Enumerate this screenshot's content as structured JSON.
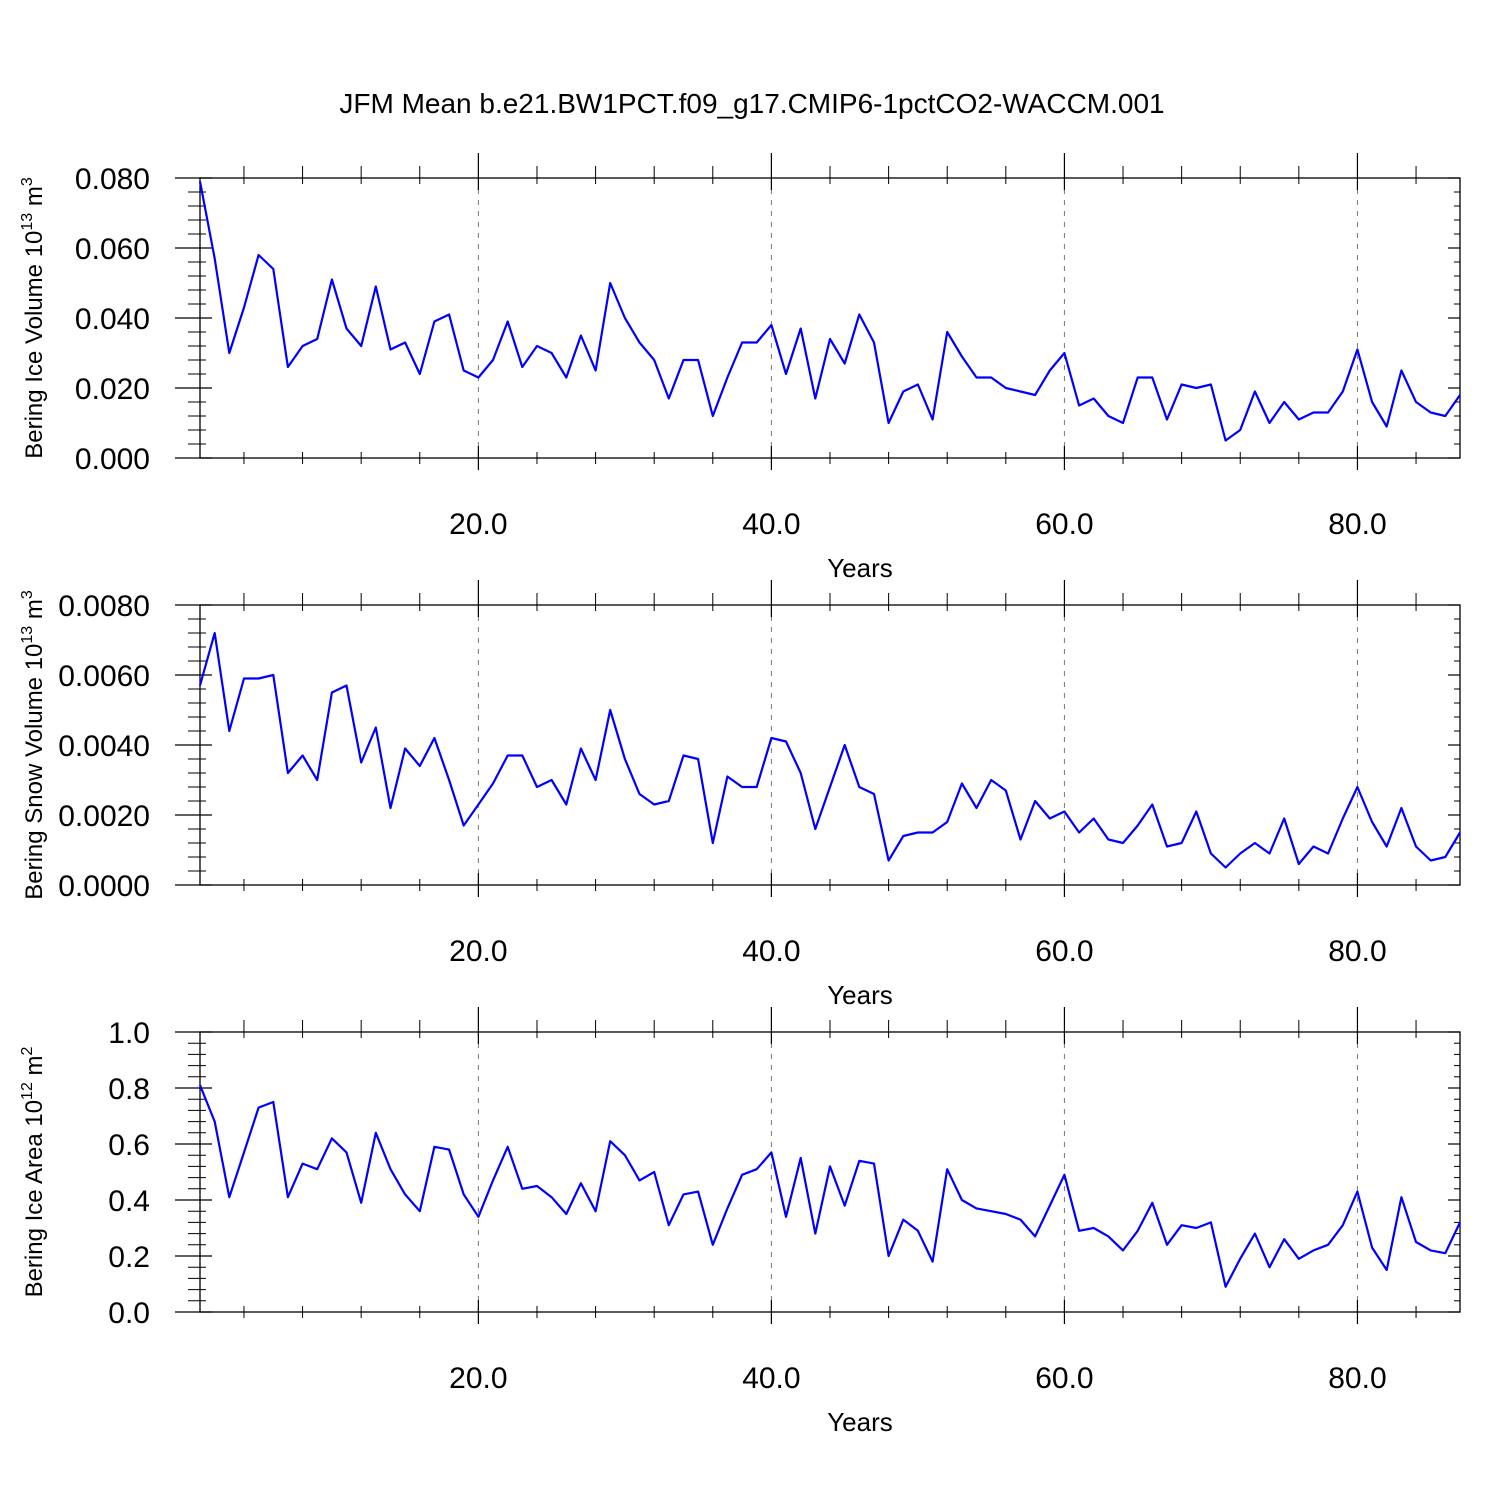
{
  "title": "JFM Mean b.e21.BW1PCT.f09_g17.CMIP6-1pctCO2-WACCM.001",
  "line_color": "#0000ff",
  "chart_data": [
    {
      "type": "line",
      "ylabel": {
        "base": "Bering Ice Volume 10",
        "exp": "13",
        "unit": " m",
        "unit_exp": "3"
      },
      "xlabel": "Years",
      "xlim": [
        1,
        87
      ],
      "ylim": [
        0,
        0.08
      ],
      "xticks": [
        20,
        40,
        60,
        80
      ],
      "xtick_labels": [
        "20.0",
        "40.0",
        "60.0",
        "80.0"
      ],
      "yticks": [
        0,
        0.02,
        0.04,
        0.06,
        0.08
      ],
      "ytick_labels": [
        "0.000",
        "0.020",
        "0.040",
        "0.060",
        "0.080"
      ],
      "x_start": 1,
      "values": [
        0.079,
        0.057,
        0.03,
        0.043,
        0.058,
        0.054,
        0.026,
        0.032,
        0.034,
        0.051,
        0.037,
        0.032,
        0.049,
        0.031,
        0.033,
        0.024,
        0.039,
        0.041,
        0.025,
        0.023,
        0.028,
        0.039,
        0.026,
        0.032,
        0.03,
        0.023,
        0.035,
        0.025,
        0.05,
        0.04,
        0.033,
        0.028,
        0.017,
        0.028,
        0.028,
        0.012,
        0.023,
        0.033,
        0.033,
        0.038,
        0.024,
        0.037,
        0.017,
        0.034,
        0.027,
        0.041,
        0.033,
        0.01,
        0.019,
        0.021,
        0.011,
        0.036,
        0.029,
        0.023,
        0.023,
        0.02,
        0.019,
        0.018,
        0.025,
        0.03,
        0.015,
        0.017,
        0.012,
        0.01,
        0.023,
        0.023,
        0.011,
        0.021,
        0.02,
        0.021,
        0.005,
        0.008,
        0.019,
        0.01,
        0.016,
        0.011,
        0.013,
        0.013,
        0.019,
        0.031,
        0.016,
        0.009,
        0.025,
        0.016,
        0.013,
        0.012,
        0.018
      ]
    },
    {
      "type": "line",
      "ylabel": {
        "base": "Bering Snow Volume 10",
        "exp": "13",
        "unit": " m",
        "unit_exp": "3"
      },
      "xlabel": "Years",
      "xlim": [
        1,
        87
      ],
      "ylim": [
        0,
        0.008
      ],
      "xticks": [
        20,
        40,
        60,
        80
      ],
      "xtick_labels": [
        "20.0",
        "40.0",
        "60.0",
        "80.0"
      ],
      "yticks": [
        0,
        0.002,
        0.004,
        0.006,
        0.008
      ],
      "ytick_labels": [
        "0.0000",
        "0.0020",
        "0.0040",
        "0.0060",
        "0.0080"
      ],
      "x_start": 1,
      "values": [
        0.0057,
        0.0072,
        0.0044,
        0.0059,
        0.0059,
        0.006,
        0.0032,
        0.0037,
        0.003,
        0.0055,
        0.0057,
        0.0035,
        0.0045,
        0.0022,
        0.0039,
        0.0034,
        0.0042,
        0.003,
        0.0017,
        0.0023,
        0.0029,
        0.0037,
        0.0037,
        0.0028,
        0.003,
        0.0023,
        0.0039,
        0.003,
        0.005,
        0.0036,
        0.0026,
        0.0023,
        0.0024,
        0.0037,
        0.0036,
        0.0012,
        0.0031,
        0.0028,
        0.0028,
        0.0042,
        0.0041,
        0.0032,
        0.0016,
        0.0028,
        0.004,
        0.0028,
        0.0026,
        0.0007,
        0.0014,
        0.0015,
        0.0015,
        0.0018,
        0.0029,
        0.0022,
        0.003,
        0.0027,
        0.0013,
        0.0024,
        0.0019,
        0.0021,
        0.0015,
        0.0019,
        0.0013,
        0.0012,
        0.0017,
        0.0023,
        0.0011,
        0.0012,
        0.0021,
        0.0009,
        0.0005,
        0.0009,
        0.0012,
        0.0009,
        0.0019,
        0.0006,
        0.0011,
        0.0009,
        0.0019,
        0.0028,
        0.0018,
        0.0011,
        0.0022,
        0.0011,
        0.0007,
        0.0008,
        0.0015
      ]
    },
    {
      "type": "line",
      "ylabel": {
        "base": "Bering Ice Area 10",
        "exp": "12",
        "unit": " m",
        "unit_exp": "2"
      },
      "xlabel": "Years",
      "xlim": [
        1,
        87
      ],
      "ylim": [
        0,
        1.0
      ],
      "xticks": [
        20,
        40,
        60,
        80
      ],
      "xtick_labels": [
        "20.0",
        "40.0",
        "60.0",
        "80.0"
      ],
      "yticks": [
        0,
        0.2,
        0.4,
        0.6,
        0.8,
        1.0
      ],
      "ytick_labels": [
        "0.0",
        "0.2",
        "0.4",
        "0.6",
        "0.8",
        "1.0"
      ],
      "x_start": 1,
      "values": [
        0.81,
        0.68,
        0.41,
        0.57,
        0.73,
        0.75,
        0.41,
        0.53,
        0.51,
        0.62,
        0.57,
        0.39,
        0.64,
        0.51,
        0.42,
        0.36,
        0.59,
        0.58,
        0.42,
        0.34,
        0.47,
        0.59,
        0.44,
        0.45,
        0.41,
        0.35,
        0.46,
        0.36,
        0.61,
        0.56,
        0.47,
        0.5,
        0.31,
        0.42,
        0.43,
        0.24,
        0.37,
        0.49,
        0.51,
        0.57,
        0.34,
        0.55,
        0.28,
        0.52,
        0.38,
        0.54,
        0.53,
        0.2,
        0.33,
        0.29,
        0.18,
        0.51,
        0.4,
        0.37,
        0.36,
        0.35,
        0.33,
        0.27,
        0.38,
        0.49,
        0.29,
        0.3,
        0.27,
        0.22,
        0.29,
        0.39,
        0.24,
        0.31,
        0.3,
        0.32,
        0.09,
        0.19,
        0.28,
        0.16,
        0.26,
        0.19,
        0.22,
        0.24,
        0.31,
        0.43,
        0.23,
        0.15,
        0.41,
        0.25,
        0.22,
        0.21,
        0.32
      ]
    }
  ]
}
